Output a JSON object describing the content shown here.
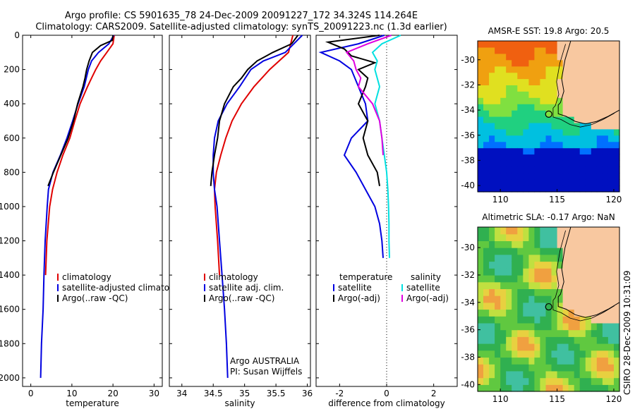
{
  "header": {
    "line1": "Argo profile: CS 5901635_78 24-Dec-2009 20091227_172 34.324S 114.264E",
    "line2": "Climatology: CARS2009. Satellite-adjusted climatology: synTS_20091223.nc (1.3d earlier)"
  },
  "side_text": "CSIRO 28-Dec-2009 10:31:09",
  "chart_data": [
    {
      "type": "line",
      "id": "temperature",
      "xlabel": "temperature",
      "ylabel": "",
      "xlim": [
        -2,
        32
      ],
      "ylim": [
        2050,
        0
      ],
      "xticks": [
        0,
        10,
        20,
        30
      ],
      "yticks": [
        0,
        200,
        400,
        600,
        800,
        1000,
        1200,
        1400,
        1600,
        1800,
        2000
      ],
      "legend": [
        "climatology",
        "satellite-adjusted climatology",
        "Argo(..raw -QC)"
      ],
      "series": [
        {
          "name": "climatology",
          "color": "#e00000",
          "depth": [
            0,
            50,
            100,
            150,
            200,
            250,
            300,
            400,
            500,
            600,
            700,
            800,
            900,
            1000,
            1200,
            1400
          ],
          "values": [
            20.3,
            20,
            18.5,
            17,
            15.8,
            14.8,
            13.8,
            12,
            10.7,
            9.5,
            7.8,
            6.4,
            5.3,
            4.6,
            3.9,
            3.6
          ]
        },
        {
          "name": "satellite-adjusted climatology",
          "color": "#0000e0",
          "depth": [
            0,
            50,
            100,
            150,
            200,
            250,
            300,
            400,
            500,
            600,
            700,
            800,
            900,
            1000,
            1200,
            1400,
            1600,
            1800,
            2000
          ],
          "values": [
            20.2,
            19,
            16.5,
            14.8,
            14,
            13.5,
            13,
            11.5,
            10.2,
            8.8,
            7.2,
            5.4,
            4.3,
            4,
            3.5,
            3.2,
            3,
            2.6,
            2.4
          ]
        },
        {
          "name": "Argo(..raw -QC)",
          "color": "#000000",
          "depth": [
            0,
            30,
            60,
            100,
            150,
            200,
            250,
            300,
            400,
            500,
            600,
            700,
            800,
            880
          ],
          "values": [
            20,
            19.8,
            17,
            15,
            14.2,
            13.6,
            13.2,
            12.7,
            11.4,
            10.4,
            9.1,
            7.3,
            5.5,
            4.2
          ]
        }
      ]
    },
    {
      "type": "line",
      "id": "salinity",
      "xlabel": "salinity",
      "ylabel": "",
      "xlim": [
        33.8,
        36.05
      ],
      "ylim": [
        2050,
        0
      ],
      "xticks": [
        34,
        34.5,
        35,
        35.5,
        36
      ],
      "xticklabels": [
        "34",
        "34.5",
        "35",
        "35.5",
        "36"
      ],
      "legend": [
        "climatology",
        "satellite adj. clim.",
        "Argo(..raw -QC)"
      ],
      "annotation": [
        "Argo AUSTRALIA",
        "PI: Susan Wijffels"
      ],
      "series": [
        {
          "name": "climatology",
          "color": "#e00000",
          "depth": [
            0,
            100,
            200,
            300,
            400,
            500,
            600,
            700,
            800,
            900,
            1000,
            1200,
            1400
          ],
          "values": [
            35.77,
            35.7,
            35.4,
            35.15,
            34.95,
            34.8,
            34.7,
            34.62,
            34.55,
            34.52,
            34.53,
            34.57,
            34.6
          ]
        },
        {
          "name": "satellite adj. clim.",
          "color": "#0000e0",
          "depth": [
            0,
            100,
            150,
            200,
            300,
            400,
            500,
            600,
            700,
            800,
            900,
            1000,
            1200,
            1400,
            1600,
            1800,
            2000
          ],
          "values": [
            35.92,
            35.65,
            35.3,
            35.1,
            34.92,
            34.72,
            34.58,
            34.52,
            34.5,
            34.5,
            34.52,
            34.56,
            34.6,
            34.64,
            34.68,
            34.71,
            34.73
          ]
        },
        {
          "name": "Argo(..raw -QC)",
          "color": "#000000",
          "depth": [
            0,
            50,
            100,
            150,
            200,
            250,
            300,
            400,
            500,
            600,
            700,
            800,
            880
          ],
          "values": [
            35.85,
            35.75,
            35.45,
            35.2,
            35.05,
            34.95,
            34.82,
            34.68,
            34.6,
            34.57,
            34.52,
            34.48,
            34.46
          ]
        }
      ]
    },
    {
      "type": "line",
      "id": "difference",
      "xlabel": "difference from climatology",
      "ylabel": "",
      "xlim": [
        -3.0,
        3.0
      ],
      "ylim": [
        2050,
        0
      ],
      "xticks": [
        -2,
        0,
        2
      ],
      "xticklabels": [
        "-2",
        "0",
        "2"
      ],
      "legend_titles": [
        "temperature",
        "salinity"
      ],
      "legend": [
        "satellite",
        "Argo(-adj)",
        "satellite",
        "Argo(-adj)"
      ],
      "series": [
        {
          "name": "satellite",
          "group": "temperature",
          "color": "#0000e0",
          "depth": [
            0,
            50,
            100,
            150,
            200,
            300,
            400,
            500,
            600,
            700,
            800,
            900,
            1000,
            1100,
            1200,
            1300
          ],
          "values": [
            -0.1,
            -1.2,
            -2.8,
            -2,
            -1.5,
            -1.2,
            -0.9,
            -0.8,
            -1.5,
            -1.8,
            -1.3,
            -0.9,
            -0.5,
            -0.3,
            -0.2,
            -0.15
          ]
        },
        {
          "name": "Argo(-adj)",
          "group": "temperature",
          "color": "#000000",
          "depth": [
            0,
            40,
            80,
            120,
            160,
            200,
            250,
            300,
            400,
            500,
            600,
            700,
            800,
            880
          ],
          "values": [
            -0.3,
            -2.5,
            -1.8,
            -1.5,
            -0.5,
            -1.2,
            -0.8,
            -0.9,
            -1.2,
            -0.8,
            -1.0,
            -0.8,
            -0.4,
            -0.3
          ]
        },
        {
          "name": "satellite",
          "group": "salinity",
          "color": "#00e0e0",
          "depth": [
            0,
            50,
            100,
            150,
            200,
            300,
            400,
            500,
            600,
            700,
            800,
            900,
            1000,
            1100,
            1200,
            1300
          ],
          "values": [
            0.6,
            -0.2,
            -0.6,
            -0.4,
            -0.5,
            -0.3,
            -0.5,
            -0.3,
            -0.2,
            -0.1,
            0,
            0.05,
            0.08,
            0.1,
            0.1,
            0.12
          ]
        },
        {
          "name": "Argo(-adj)",
          "group": "salinity",
          "color": "#e000e0",
          "depth": [
            0,
            50,
            100,
            150,
            200,
            250,
            300,
            400,
            500,
            600,
            700
          ],
          "values": [
            0.2,
            -0.8,
            -1.7,
            -1.4,
            -1.3,
            -1.1,
            -1.2,
            -0.6,
            -0.3,
            -0.2,
            -0.15
          ]
        }
      ]
    },
    {
      "type": "heatmap",
      "id": "sst_map",
      "title": "AMSR-E SST: 19.8 Argo: 20.5",
      "xlim": [
        108,
        120.5
      ],
      "ylim": [
        -40.5,
        -28.5
      ],
      "xticks": [
        110,
        115,
        120
      ],
      "yticks": [
        -30,
        -32,
        -34,
        -36,
        -38,
        -40
      ],
      "colors": {
        "land": "#f8c8a0"
      }
    },
    {
      "type": "heatmap",
      "id": "sla_map",
      "title": "Altimetric SLA: -0.17 Argo: NaN",
      "xlim": [
        108,
        120.5
      ],
      "ylim": [
        -40.5,
        -28.5
      ],
      "xticks": [
        110,
        115,
        120
      ],
      "yticks": [
        -30,
        -32,
        -34,
        -36,
        -38,
        -40
      ],
      "colors": {
        "land": "#f8c8a0"
      }
    }
  ]
}
